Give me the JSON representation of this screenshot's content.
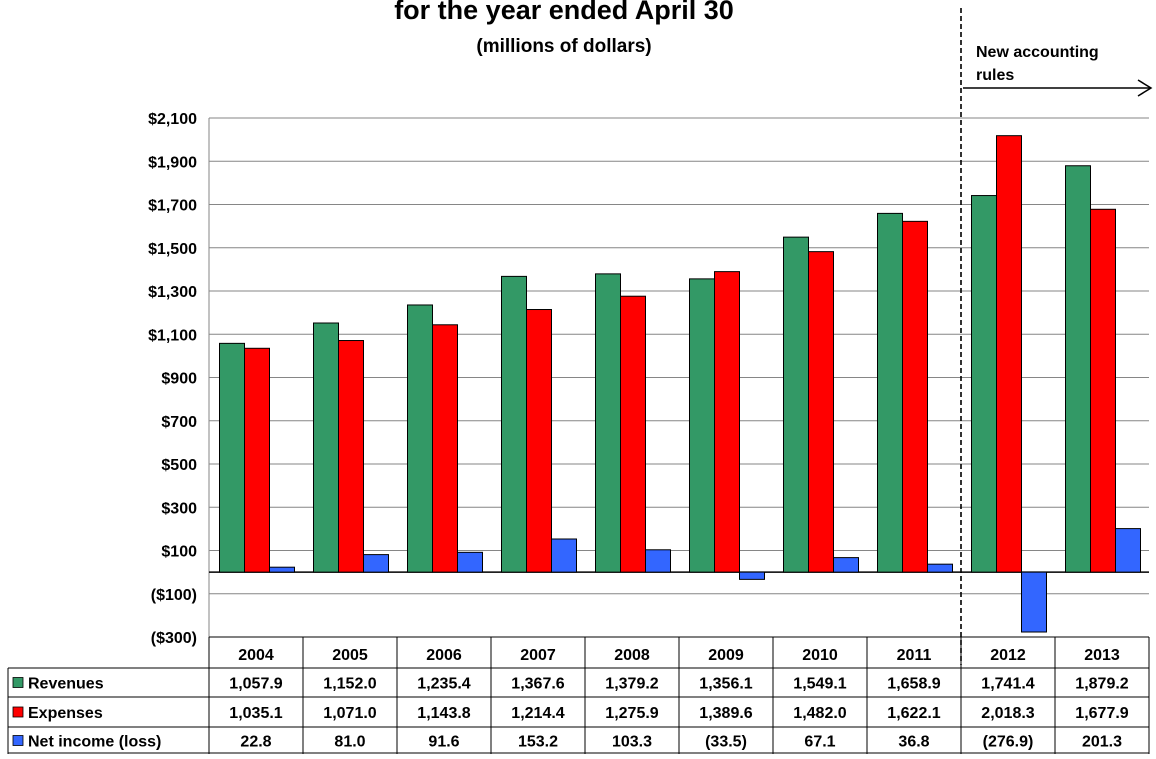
{
  "chart_data": {
    "type": "bar",
    "title": "for the year ended April 30",
    "subtitle": "(millions of dollars)",
    "ylim": [
      -300,
      2100
    ],
    "yticks": [
      -300,
      -100,
      100,
      300,
      500,
      700,
      900,
      1100,
      1300,
      1500,
      1700,
      1900,
      2100
    ],
    "ytick_labels": [
      "($300)",
      "($100)",
      "$100",
      "$300",
      "$500",
      "$700",
      "$900",
      "$1,100",
      "$1,300",
      "$1,500",
      "$1,700",
      "$1,900",
      "$2,100"
    ],
    "grid": true,
    "categories": [
      "2004",
      "2005",
      "2006",
      "2007",
      "2008",
      "2009",
      "2010",
      "2011",
      "2012",
      "2013"
    ],
    "series": [
      {
        "name": "Revenues",
        "color": "#339966",
        "values": [
          1057.9,
          1152.0,
          1235.4,
          1367.6,
          1379.2,
          1356.1,
          1549.1,
          1658.9,
          1741.4,
          1879.2
        ],
        "labels": [
          "1,057.9",
          "1,152.0",
          "1,235.4",
          "1,367.6",
          "1,379.2",
          "1,356.1",
          "1,549.1",
          "1,658.9",
          "1,741.4",
          "1,879.2"
        ]
      },
      {
        "name": "Expenses",
        "color": "#ff0000",
        "values": [
          1035.1,
          1071.0,
          1143.8,
          1214.4,
          1275.9,
          1389.6,
          1482.0,
          1622.1,
          2018.3,
          1677.9
        ],
        "labels": [
          "1,035.1",
          "1,071.0",
          "1,143.8",
          "1,214.4",
          "1,275.9",
          "1,389.6",
          "1,482.0",
          "1,622.1",
          "2,018.3",
          "1,677.9"
        ]
      },
      {
        "name": "Net income (loss)",
        "color": "#3366ff",
        "values": [
          22.8,
          81.0,
          91.6,
          153.2,
          103.3,
          -33.5,
          67.1,
          36.8,
          -276.9,
          201.3
        ],
        "labels": [
          "22.8",
          "81.0",
          "91.6",
          "153.2",
          "103.3",
          "(33.5)",
          "67.1",
          "36.8",
          "(276.9)",
          "201.3"
        ]
      }
    ],
    "annotation": {
      "text_line1": "New accounting",
      "text_line2": "rules",
      "divider_after_category": "2011"
    }
  }
}
